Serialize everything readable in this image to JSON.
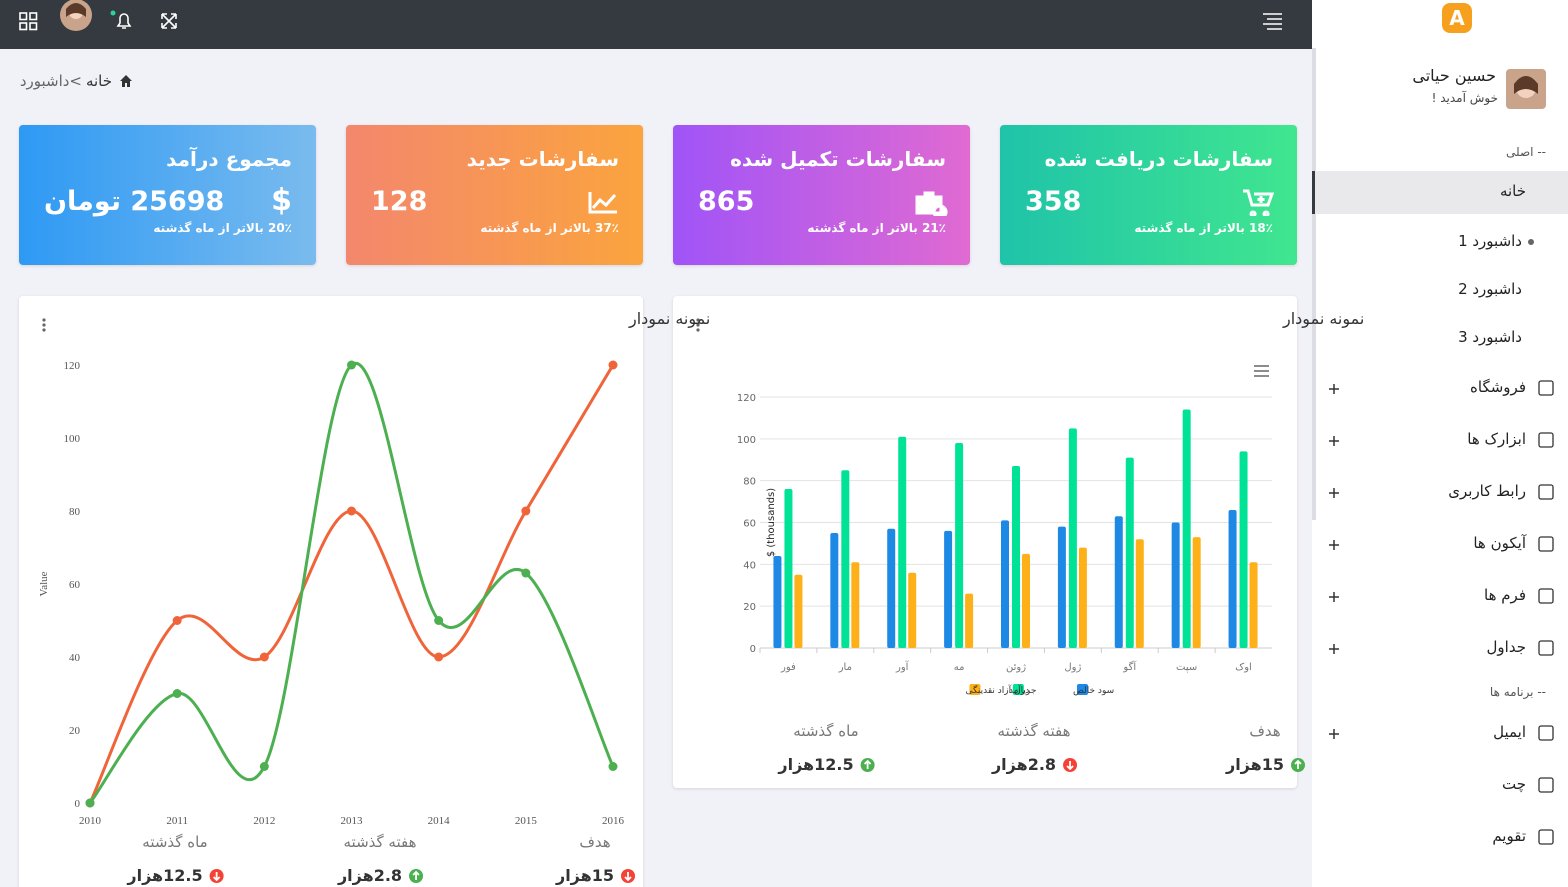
{
  "breadcrumb": {
    "home": "خانه",
    "current": ">داشبورد"
  },
  "sidebar": {
    "logo": "A",
    "user": {
      "name": "حسین حیاتی",
      "greeting": "خوش آمدید !"
    },
    "menu": [
      {
        "section": "-- اصلی"
      },
      {
        "label": "خانه",
        "toggle": "minus",
        "active": true
      },
      {
        "label": "داشبورد 1",
        "sub": true,
        "bullet": true
      },
      {
        "label": "داشبورد 2",
        "sub": true
      },
      {
        "label": "داشبورد 3",
        "sub": true
      },
      {
        "label": "فروشگاه",
        "toggle": "plus"
      },
      {
        "label": "ابزارک ها",
        "toggle": "plus"
      },
      {
        "label": "رابط کاربری",
        "toggle": "plus"
      },
      {
        "label": "آیکون ها",
        "toggle": "plus"
      },
      {
        "label": "فرم ها",
        "toggle": "plus"
      },
      {
        "label": "جداول",
        "toggle": "plus"
      },
      {
        "section": "-- برنامه ها"
      },
      {
        "label": "ایمیل",
        "toggle": "plus"
      },
      {
        "label": "چت"
      },
      {
        "label": "تقویم"
      }
    ]
  },
  "stat_cards": [
    {
      "title": "سفارشات دریافت شده",
      "value": 358,
      "note": "18٪ بالاتر از ماه گذشته"
    },
    {
      "title": "سفارشات تکمیل شده",
      "value": 865,
      "note": "21٪ بالاتر از ماه گذشته"
    },
    {
      "title": "سفارشات جدید",
      "value": 128,
      "note": "37٪ بالاتر از ماه گذشته"
    },
    {
      "title": "مجموع درآمد",
      "value": "25698 تومان",
      "icon": "$",
      "note": "20٪ بالاتر از ماه گذشته"
    }
  ],
  "chart_data": [
    {
      "type": "bar",
      "title": "نمونه نمودار",
      "y_label": "$ (thousands)",
      "categories": [
        "فور",
        "مار",
        "آور",
        "مه",
        "ژوئن",
        "ژول",
        "آگو",
        "سپت",
        "اوک"
      ],
      "series": [
        {
          "name": "سود خالص",
          "color": "#1e88e5",
          "values": [
            44,
            55,
            57,
            56,
            61,
            58,
            63,
            60,
            66
          ]
        },
        {
          "name": "درآمد",
          "color": "#00e396",
          "values": [
            76,
            85,
            101,
            98,
            87,
            105,
            91,
            114,
            94
          ]
        },
        {
          "name": "جریان آزاد نقدینگی",
          "color": "#feb019",
          "values": [
            35,
            41,
            36,
            26,
            45,
            48,
            52,
            53,
            41
          ]
        }
      ],
      "ylim": [
        0,
        120
      ],
      "yticks": [
        0,
        20,
        40,
        60,
        80,
        100,
        120
      ],
      "grid": true
    },
    {
      "type": "line",
      "title": "نمونه نمودار",
      "y_label": "Value",
      "x": [
        2010,
        2011,
        2012,
        2013,
        2014,
        2015,
        2016
      ],
      "series": [
        {
          "color": "#f0643a",
          "values": [
            0,
            50,
            40,
            80,
            40,
            80,
            120
          ]
        },
        {
          "color": "#4caf50",
          "values": [
            0,
            30,
            10,
            120,
            50,
            63,
            10
          ]
        }
      ],
      "xlim": [
        2010,
        2016
      ],
      "xticks": [
        2010,
        2011,
        2012,
        2013,
        2014,
        2015,
        2016
      ],
      "ylim": [
        0,
        120
      ],
      "yticks": [
        0,
        20,
        40,
        60,
        80,
        100,
        120
      ],
      "grid": false
    }
  ],
  "chart_stats": [
    [
      {
        "label": "هدف",
        "value": "15هزار",
        "trend": "up"
      },
      {
        "label": "هفته گذشته",
        "value": "2.8هزار",
        "trend": "down"
      },
      {
        "label": "ماه گذشته",
        "value": "12.5هزار",
        "trend": "up"
      }
    ],
    [
      {
        "label": "هدف",
        "value": "15هزار",
        "trend": "down"
      },
      {
        "label": "هفته گذشته",
        "value": "2.8هزار",
        "trend": "up"
      },
      {
        "label": "ماه گذشته",
        "value": "12.5هزار",
        "trend": "down"
      }
    ]
  ]
}
